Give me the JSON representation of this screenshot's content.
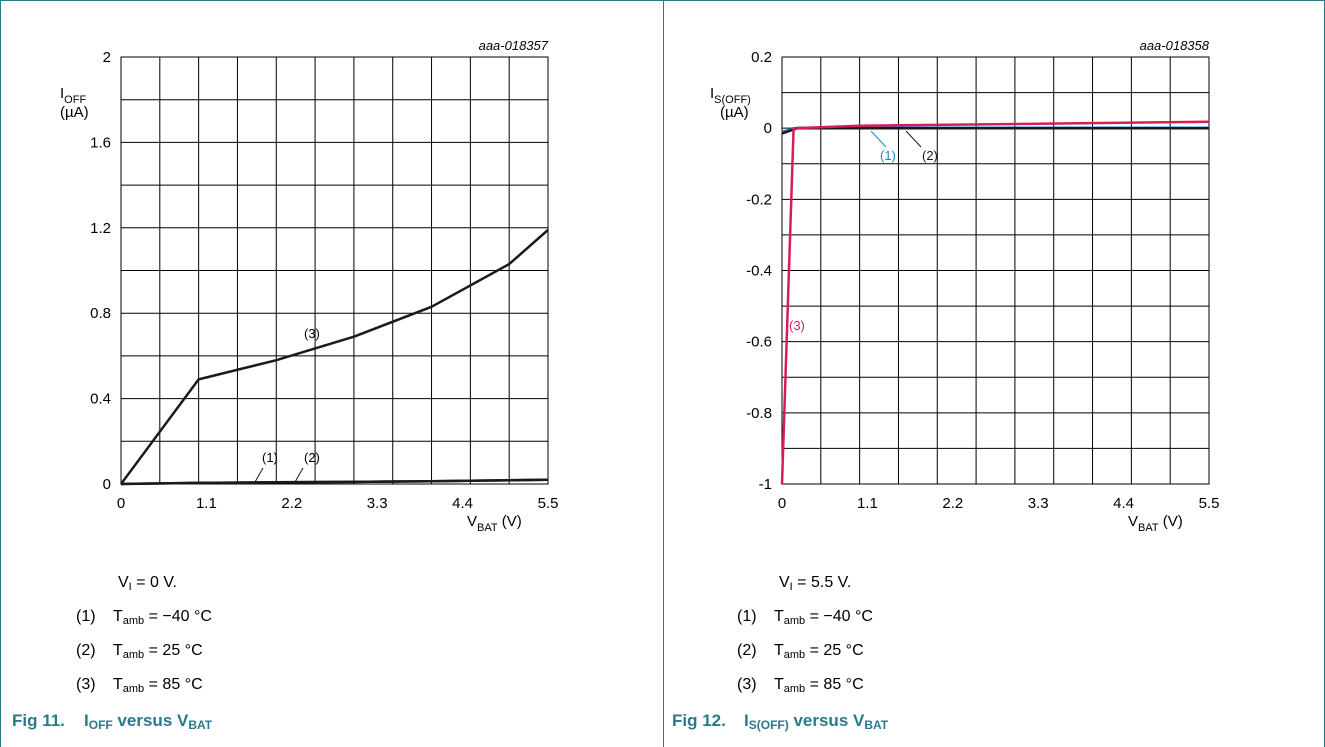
{
  "colors": {
    "accent": "#2a7a8c",
    "series_black": "#1a1a1a",
    "series_pink": "#d81b60",
    "series_blue": "#1e88c8"
  },
  "chart_data": [
    {
      "type": "line",
      "code": "aaa-018357",
      "ylabel_main": "I",
      "ylabel_sub": "OFF",
      "ylabel_unit": "(µA)",
      "xlabel_main": "V",
      "xlabel_sub": "BAT",
      "xlabel_unit": "(V)",
      "xlim": [
        0,
        5.5
      ],
      "ylim": [
        0,
        2
      ],
      "xticks": [
        "0",
        "1.1",
        "2.2",
        "3.3",
        "4.4",
        "5.5"
      ],
      "yticks": [
        "0",
        "0.4",
        "0.8",
        "1.2",
        "1.6",
        "2"
      ],
      "grid": true,
      "series": [
        {
          "name": "(1)",
          "color": "#1a1a1a",
          "x": [
            0,
            1,
            2,
            3,
            4,
            5.5
          ],
          "y": [
            0,
            0.005,
            0.008,
            0.01,
            0.013,
            0.02
          ]
        },
        {
          "name": "(2)",
          "color": "#1a1a1a",
          "x": [
            0,
            1,
            2,
            3,
            4,
            5.5
          ],
          "y": [
            0,
            0.005,
            0.008,
            0.01,
            0.013,
            0.02
          ]
        },
        {
          "name": "(3)",
          "color": "#1a1a1a",
          "x": [
            0,
            1,
            2,
            3,
            4,
            5,
            5.5
          ],
          "y": [
            0,
            0.49,
            0.58,
            0.69,
            0.83,
            1.03,
            1.19
          ]
        }
      ],
      "annotations": [
        {
          "text": "(1)",
          "color": "#1a1a1a"
        },
        {
          "text": "(2)",
          "color": "#1a1a1a"
        },
        {
          "text": "(3)",
          "color": "#1a1a1a"
        }
      ]
    },
    {
      "type": "line",
      "code": "aaa-018358",
      "ylabel_main": "I",
      "ylabel_sub": "S(OFF)",
      "ylabel_unit": "(µA)",
      "xlabel_main": "V",
      "xlabel_sub": "BAT",
      "xlabel_unit": "(V)",
      "xlim": [
        0,
        5.5
      ],
      "ylim": [
        -1,
        0.2
      ],
      "xticks": [
        "0",
        "1.1",
        "2.2",
        "3.3",
        "4.4",
        "5.5"
      ],
      "yticks": [
        "-1",
        "-0.8",
        "-0.6",
        "-0.4",
        "-0.2",
        "0",
        "0.2"
      ],
      "grid": true,
      "series": [
        {
          "name": "(1)",
          "color": "#1e88c8",
          "x": [
            0,
            0.2,
            5.5
          ],
          "y": [
            -0.01,
            0.001,
            0.001
          ]
        },
        {
          "name": "(2)",
          "color": "#1a1a1a",
          "x": [
            0,
            0.2,
            5.5
          ],
          "y": [
            -0.015,
            0,
            0
          ]
        },
        {
          "name": "(3)",
          "color": "#d81b60",
          "x": [
            0,
            0.15,
            1,
            5.5
          ],
          "y": [
            -1,
            0,
            0.007,
            0.018
          ]
        }
      ],
      "annotations": [
        {
          "text": "(1)",
          "color": "#1e88c8"
        },
        {
          "text": "(2)",
          "color": "#1a1a1a"
        },
        {
          "text": "(3)",
          "color": "#d81b60"
        }
      ]
    }
  ],
  "left": {
    "condition": {
      "main": "V",
      "sub": "I",
      "rest": " = 0 V."
    },
    "items": [
      {
        "num": "(1)",
        "t": "T",
        "sub": "amb",
        "rest": " = −40 °C"
      },
      {
        "num": "(2)",
        "t": "T",
        "sub": "amb",
        "rest": " = 25 °C"
      },
      {
        "num": "(3)",
        "t": "T",
        "sub": "amb",
        "rest": " = 85 °C"
      }
    ],
    "caption": {
      "fig": "Fig 11.",
      "a": "I",
      "a_sub": "OFF",
      "mid": " versus V",
      "b_sub": "BAT"
    }
  },
  "right": {
    "condition": {
      "main": "V",
      "sub": "I",
      "rest": " = 5.5 V."
    },
    "items": [
      {
        "num": "(1)",
        "t": "T",
        "sub": "amb",
        "rest": " = −40 °C"
      },
      {
        "num": "(2)",
        "t": "T",
        "sub": "amb",
        "rest": " = 25 °C"
      },
      {
        "num": "(3)",
        "t": "T",
        "sub": "amb",
        "rest": " = 85 °C"
      }
    ],
    "caption": {
      "fig": "Fig 12.",
      "a": "I",
      "a_sub": "S(OFF)",
      "mid": " versus V",
      "b_sub": "BAT"
    }
  }
}
